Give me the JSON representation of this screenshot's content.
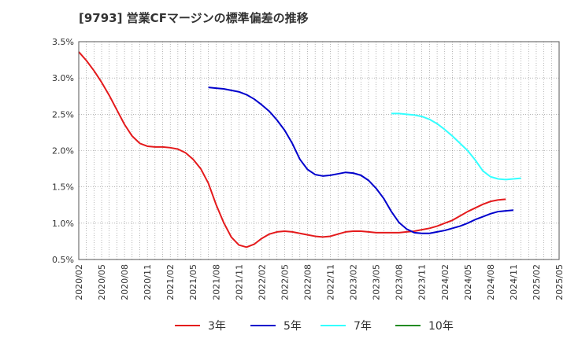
{
  "title": "[9793]  営業CFマージンの標準偏差の推移",
  "colors": {
    "3年": "#e41a1c",
    "5年": "#0000cc",
    "7年": "#33ffff",
    "10年": "#228b22",
    "grid": "#888888",
    "axis": "#555555"
  },
  "chart_data": {
    "type": "line",
    "title": "[9793]  営業CFマージンの標準偏差の推移",
    "xlabel": "",
    "ylabel": "",
    "ylim": [
      0.5,
      3.5
    ],
    "y_ticks": [
      "0.5%",
      "1.0%",
      "1.5%",
      "2.0%",
      "2.5%",
      "3.0%",
      "3.5%"
    ],
    "x_ticks": [
      "2020/02",
      "2020/05",
      "2020/08",
      "2020/11",
      "2021/02",
      "2021/05",
      "2021/08",
      "2021/11",
      "2022/02",
      "2022/05",
      "2022/08",
      "2022/11",
      "2023/02",
      "2023/05",
      "2023/08",
      "2023/11",
      "2024/02",
      "2024/05",
      "2024/08",
      "2024/11",
      "2025/02",
      "2025/05"
    ],
    "x_start": "2020/02",
    "grid": true,
    "legend_position": "bottom",
    "series": [
      {
        "name": "3年",
        "start": "2020/02",
        "values": [
          3.36,
          3.24,
          3.1,
          2.94,
          2.76,
          2.56,
          2.36,
          2.2,
          2.1,
          2.06,
          2.05,
          2.05,
          2.04,
          2.02,
          1.97,
          1.88,
          1.75,
          1.55,
          1.26,
          1.01,
          0.81,
          0.7,
          0.67,
          0.71,
          0.79,
          0.85,
          0.88,
          0.89,
          0.88,
          0.86,
          0.84,
          0.82,
          0.81,
          0.82,
          0.85,
          0.88,
          0.89,
          0.89,
          0.88,
          0.87,
          0.87,
          0.87,
          0.87,
          0.88,
          0.89,
          0.91,
          0.93,
          0.96,
          1.0,
          1.04,
          1.1,
          1.16,
          1.21,
          1.26,
          1.3,
          1.32,
          1.33
        ]
      },
      {
        "name": "5年",
        "start": "2021/07",
        "values": [
          2.87,
          2.86,
          2.85,
          2.83,
          2.81,
          2.77,
          2.71,
          2.63,
          2.54,
          2.42,
          2.28,
          2.1,
          1.88,
          1.74,
          1.67,
          1.65,
          1.66,
          1.68,
          1.7,
          1.69,
          1.66,
          1.59,
          1.48,
          1.34,
          1.16,
          1.01,
          0.92,
          0.87,
          0.86,
          0.86,
          0.88,
          0.9,
          0.93,
          0.96,
          1.0,
          1.05,
          1.09,
          1.13,
          1.16,
          1.17,
          1.18
        ]
      },
      {
        "name": "7年",
        "start": "2023/07",
        "values": [
          2.51,
          2.51,
          2.5,
          2.49,
          2.47,
          2.43,
          2.37,
          2.29,
          2.2,
          2.1,
          2.0,
          1.87,
          1.72,
          1.64,
          1.61,
          1.6,
          1.61,
          1.62
        ]
      },
      {
        "name": "10年",
        "start": "2025/02",
        "values": []
      }
    ]
  }
}
